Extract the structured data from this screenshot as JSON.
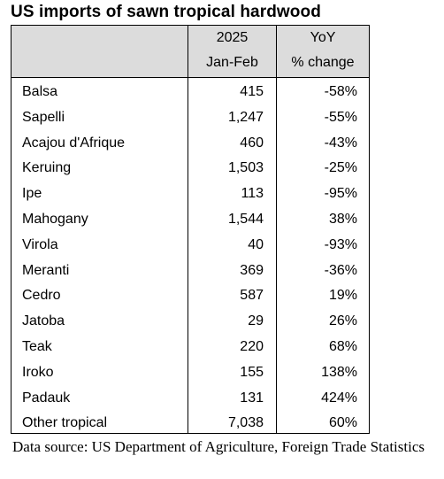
{
  "title": "US imports of sawn tropical hardwood",
  "header": {
    "col2_line1": "2025",
    "col2_line2": "Jan-Feb",
    "col3_line1": "YoY",
    "col3_line2": "% change"
  },
  "source": "Data source: US Department of Agriculture, Foreign Trade Statistics",
  "chart_data": {
    "type": "table",
    "title": "US imports of sawn tropical hardwood",
    "columns": [
      "",
      "2025 Jan-Feb",
      "YoY % change"
    ],
    "rows": [
      {
        "name": "Balsa",
        "value": "415",
        "yoy": "-58%"
      },
      {
        "name": "Sapelli",
        "value": "1,247",
        "yoy": "-55%"
      },
      {
        "name": "Acajou d'Afrique",
        "value": "460",
        "yoy": "-43%"
      },
      {
        "name": "Keruing",
        "value": "1,503",
        "yoy": "-25%"
      },
      {
        "name": "Ipe",
        "value": "113",
        "yoy": "-95%"
      },
      {
        "name": "Mahogany",
        "value": "1,544",
        "yoy": "38%"
      },
      {
        "name": "Virola",
        "value": "40",
        "yoy": "-93%"
      },
      {
        "name": "Meranti",
        "value": "369",
        "yoy": "-36%"
      },
      {
        "name": "Cedro",
        "value": "587",
        "yoy": "19%"
      },
      {
        "name": "Jatoba",
        "value": "29",
        "yoy": "26%"
      },
      {
        "name": "Teak",
        "value": "220",
        "yoy": "68%"
      },
      {
        "name": "Iroko",
        "value": "155",
        "yoy": "138%"
      },
      {
        "name": "Padauk",
        "value": "131",
        "yoy": "424%"
      },
      {
        "name": "Other tropical",
        "value": "7,038",
        "yoy": "60%"
      }
    ]
  }
}
